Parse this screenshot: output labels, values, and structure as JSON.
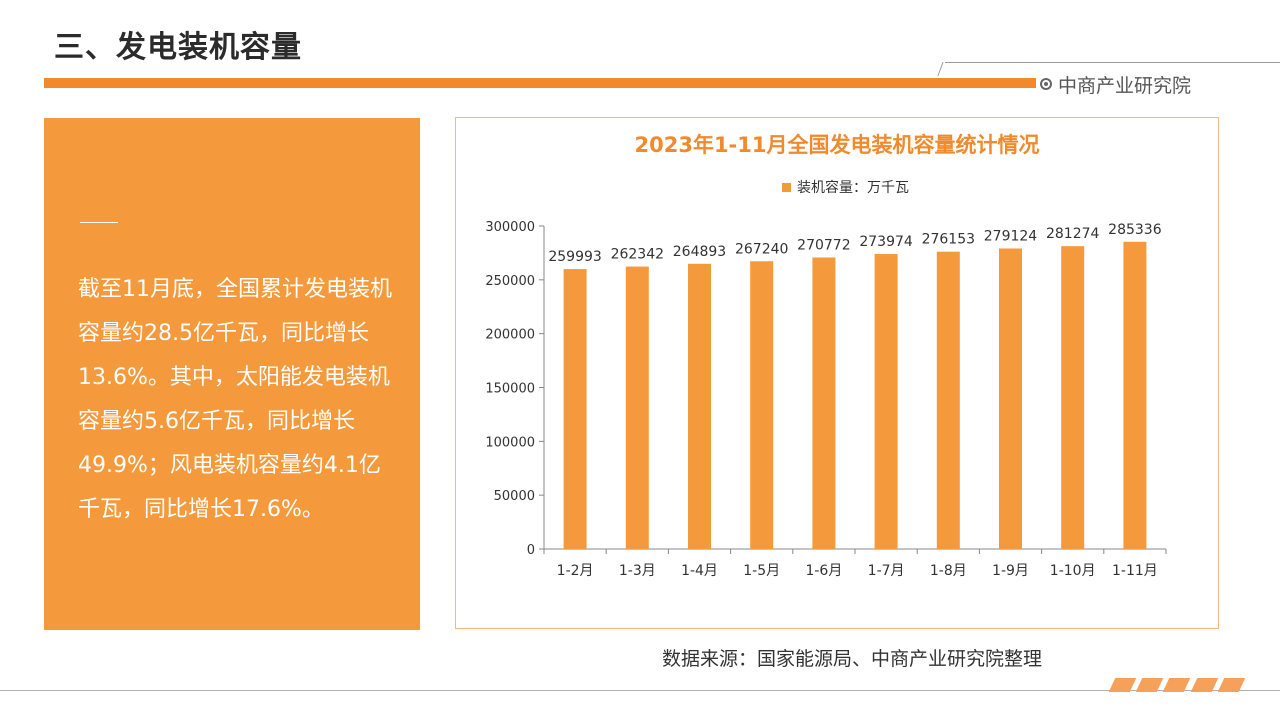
{
  "page": {
    "title": "三、发电装机容量",
    "brand": "中商产业研究院"
  },
  "summary": {
    "text": "截至11月底，全国累计发电装机容量约28.5亿千瓦，同比增长13.6%。其中，太阳能发电装机容量约5.6亿千瓦，同比增长49.9%；风电装机容量约4.1亿千瓦，同比增长17.6%。"
  },
  "source": "数据来源：国家能源局、中商产业研究院整理",
  "colors": {
    "accent": "#f08a2c",
    "bar": "#f59a3c",
    "panel": "#f59a3c"
  },
  "chart_data": {
    "type": "bar",
    "title": "2023年1-11月全国发电装机容量统计情况",
    "categories": [
      "1-2月",
      "1-3月",
      "1-4月",
      "1-5月",
      "1-6月",
      "1-7月",
      "1-8月",
      "1-9月",
      "1-10月",
      "1-11月"
    ],
    "series": [
      {
        "name": "装机容量：万千瓦",
        "values": [
          259993,
          262342,
          264893,
          267240,
          270772,
          273974,
          276153,
          279124,
          281274,
          285336
        ]
      }
    ],
    "ylim": [
      0,
      300000
    ],
    "yticks": [
      0,
      50000,
      100000,
      150000,
      200000,
      250000,
      300000
    ],
    "legend": "top",
    "grid": false,
    "data_labels": true
  }
}
